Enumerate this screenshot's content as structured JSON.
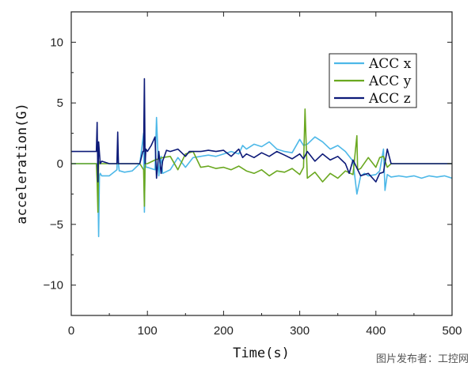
{
  "chart_data": {
    "type": "line",
    "title": "",
    "xlabel": "Time(s)",
    "ylabel": "acceleration(G)",
    "xlim": [
      0,
      500
    ],
    "ylim": [
      -12.5,
      12.5
    ],
    "xticks": [
      0,
      100,
      200,
      300,
      400,
      500
    ],
    "yticks": [
      -10,
      -5,
      0,
      5,
      10
    ],
    "grid": false,
    "legend_position": "top-right",
    "series": [
      {
        "name": "ACC x",
        "color": "#4db8e8",
        "x": [
          0,
          34,
          35,
          36,
          37,
          38,
          40,
          50,
          60,
          61,
          62,
          63,
          64,
          70,
          80,
          90,
          95,
          96,
          97,
          98,
          100,
          110,
          112,
          115,
          118,
          120,
          130,
          140,
          150,
          160,
          170,
          180,
          190,
          200,
          210,
          220,
          225,
          230,
          240,
          250,
          260,
          270,
          280,
          290,
          300,
          305,
          310,
          320,
          330,
          340,
          350,
          360,
          370,
          375,
          380,
          385,
          390,
          400,
          405,
          410,
          412,
          415,
          420,
          430,
          440,
          450,
          460,
          470,
          480,
          490,
          500
        ],
        "y": [
          0,
          0,
          -2,
          -6,
          -1,
          -0.8,
          -1,
          -1,
          -0.5,
          1.5,
          0,
          -0.6,
          -0.6,
          -0.7,
          -0.6,
          0,
          2.5,
          -4,
          0.5,
          -0.3,
          -0.3,
          -0.5,
          3.8,
          -1,
          0.6,
          -0.8,
          -0.5,
          0.5,
          -0.3,
          0.5,
          0.6,
          0.7,
          0.6,
          0.8,
          1.0,
          0.8,
          1.5,
          1.2,
          1.6,
          1.4,
          1.8,
          1.2,
          1.0,
          0.9,
          2.0,
          1.5,
          1.6,
          2.2,
          1.8,
          1.2,
          1.5,
          1.0,
          0.2,
          -2.5,
          -1.0,
          -0.8,
          -1.0,
          -0.9,
          -0.6,
          1.2,
          -2.2,
          -0.9,
          -1.1,
          -1.0,
          -1.1,
          -1.0,
          -1.2,
          -1.0,
          -1.1,
          -1.0,
          -1.2
        ]
      },
      {
        "name": "ACC y",
        "color": "#6aa820",
        "x": [
          0,
          33,
          34,
          35,
          36,
          37,
          40,
          60,
          90,
          95,
          96,
          97,
          100,
          110,
          120,
          130,
          140,
          150,
          160,
          170,
          180,
          190,
          200,
          210,
          220,
          230,
          240,
          250,
          260,
          270,
          280,
          290,
          300,
          305,
          307,
          310,
          320,
          330,
          340,
          350,
          360,
          370,
          375,
          376,
          380,
          390,
          400,
          405,
          410,
          415,
          420,
          430,
          440,
          450,
          460,
          470,
          480,
          490,
          500
        ],
        "y": [
          0,
          0,
          -1.5,
          -4,
          0.2,
          0,
          0,
          0,
          0,
          -0.5,
          -3.5,
          0,
          0,
          0.3,
          0.5,
          0.6,
          -0.5,
          0.8,
          1.0,
          -0.3,
          -0.2,
          -0.4,
          -0.3,
          -0.5,
          -0.2,
          -0.6,
          -0.8,
          -0.5,
          -1.0,
          -0.6,
          -0.7,
          -0.4,
          -0.9,
          -0.3,
          4.5,
          -1.2,
          -0.7,
          -1.5,
          -0.8,
          -1.2,
          -0.6,
          -0.9,
          2.3,
          -0.5,
          -0.4,
          0.5,
          -0.3,
          0.5,
          0.6,
          -0.3,
          0,
          0,
          0,
          0,
          0,
          0,
          0,
          0,
          0
        ]
      },
      {
        "name": "ACC z",
        "color": "#0d1a78",
        "x": [
          0,
          30,
          33,
          34,
          35,
          36,
          38,
          40,
          50,
          60,
          61,
          62,
          63,
          70,
          80,
          90,
          94,
          95,
          96,
          97,
          98,
          100,
          105,
          110,
          112,
          115,
          118,
          120,
          125,
          130,
          140,
          150,
          155,
          160,
          170,
          180,
          190,
          200,
          210,
          220,
          225,
          230,
          240,
          250,
          260,
          270,
          280,
          290,
          300,
          305,
          310,
          320,
          330,
          340,
          350,
          360,
          365,
          370,
          380,
          390,
          400,
          405,
          410,
          415,
          420,
          430,
          440,
          450,
          460,
          470,
          480,
          490,
          500
        ],
        "y": [
          1,
          1,
          1,
          3.4,
          -1.5,
          1.8,
          0,
          0.2,
          0,
          0,
          2.6,
          0,
          0,
          0,
          0,
          0,
          1,
          1,
          7,
          0,
          1.2,
          1,
          1.5,
          2.2,
          -1.2,
          1,
          -0.8,
          0.2,
          1.1,
          1.0,
          1.2,
          0.6,
          1.0,
          1.0,
          1.0,
          1.1,
          1.0,
          1.1,
          0.6,
          1.2,
          0.5,
          0.8,
          0.5,
          0.9,
          0.6,
          1.0,
          0.7,
          0.4,
          0.8,
          0.4,
          1.0,
          0.2,
          0.8,
          0.3,
          0.6,
          0.0,
          -0.8,
          0.3,
          -1.0,
          -0.8,
          -1.5,
          -0.8,
          -0.7,
          1.2,
          0,
          0,
          0,
          0,
          0,
          0,
          0,
          0,
          0
        ]
      }
    ]
  },
  "watermark": "图片发布者：工控网"
}
